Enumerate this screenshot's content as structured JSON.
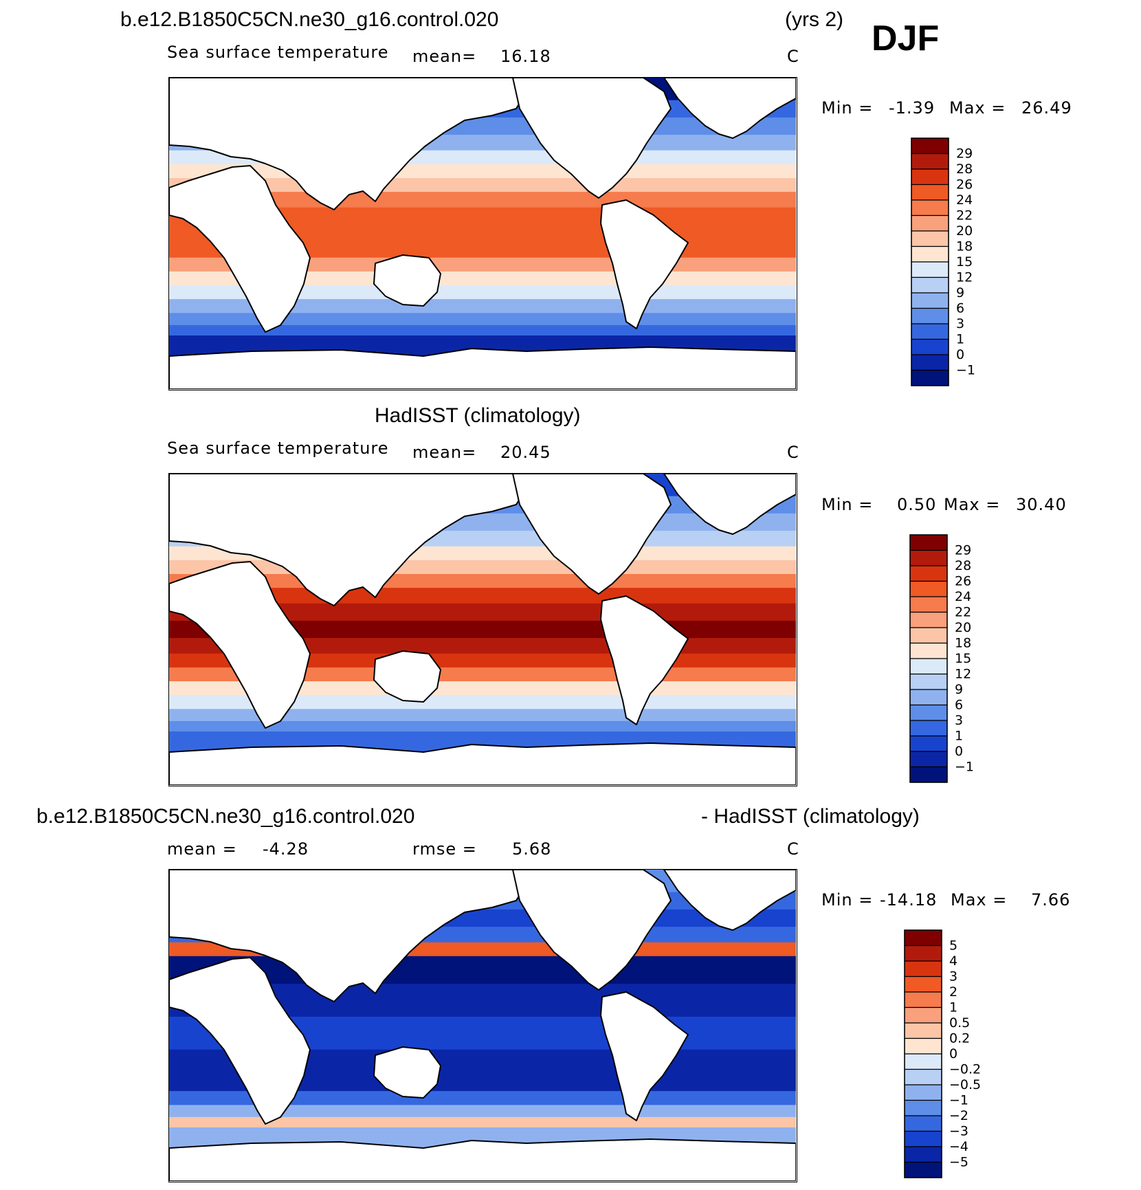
{
  "season_label": "DJF",
  "panels": [
    {
      "id": "model",
      "title_left": "b.e12.B1850C5CN.ne30_g16.control.020",
      "title_right": "(yrs 2)",
      "variable": "Sea surface temperature",
      "stat1_label": "mean=",
      "stat1_value": "16.18",
      "units": "C",
      "min_label": "Min =",
      "min_value": "-1.39",
      "max_label": "Max =",
      "max_value": "26.49"
    },
    {
      "id": "obs",
      "title_center": "HadISST (climatology)",
      "variable": "Sea surface temperature",
      "stat1_label": "mean=",
      "stat1_value": "20.45",
      "units": "C",
      "min_label": "Min =",
      "min_value": "0.50",
      "max_label": "Max =",
      "max_value": "30.40"
    },
    {
      "id": "diff",
      "title_left": "b.e12.B1850C5CN.ne30_g16.control.020",
      "title_right": "- HadISST (climatology)",
      "stat1_label": "mean =",
      "stat1_value": "-4.28",
      "stat2_label": "rmse =",
      "stat2_value": "5.68",
      "units": "C",
      "min_label": "Min =",
      "min_value": "-14.18",
      "max_label": "Max =",
      "max_value": "7.66"
    }
  ],
  "chart_data": [
    {
      "type": "heatmap",
      "title": "b.e12.B1850C5CN.ne30_g16.control.020 (yrs 2) DJF Sea surface temperature",
      "units": "C",
      "mean": 16.18,
      "min": -1.39,
      "max": 26.49,
      "colorbar_levels": [
        "29",
        "28",
        "26",
        "24",
        "22",
        "20",
        "18",
        "15",
        "12",
        "9",
        "6",
        "3",
        "1",
        "0",
        "-1"
      ],
      "colorbar_colors": [
        "#7f0000",
        "#b21b0c",
        "#d93410",
        "#ef5a25",
        "#f67b4d",
        "#f9a07c",
        "#fcc5a8",
        "#fde5d2",
        "#dce9f8",
        "#b7d0f4",
        "#8fb2ef",
        "#5e8ee8",
        "#3568e0",
        "#1743cf",
        "#0a26a6",
        "#00137b"
      ],
      "bands": [
        {
          "lat": 82,
          "value": -1.2
        },
        {
          "lat": 72,
          "value": 1.5
        },
        {
          "lat": 62,
          "value": 4
        },
        {
          "lat": 52,
          "value": 8
        },
        {
          "lat": 44,
          "value": 12
        },
        {
          "lat": 36,
          "value": 16
        },
        {
          "lat": 28,
          "value": 19
        },
        {
          "lat": 20,
          "value": 22
        },
        {
          "lat": 10,
          "value": 24.5
        },
        {
          "lat": 0,
          "value": 25.5
        },
        {
          "lat": -10,
          "value": 24
        },
        {
          "lat": -18,
          "value": 21
        },
        {
          "lat": -26,
          "value": 17
        },
        {
          "lat": -34,
          "value": 12.5
        },
        {
          "lat": -42,
          "value": 8
        },
        {
          "lat": -50,
          "value": 4
        },
        {
          "lat": -56,
          "value": 1.5
        },
        {
          "lat": -62,
          "value": -0.5
        }
      ]
    },
    {
      "type": "heatmap",
      "title": "HadISST (climatology) Sea surface temperature",
      "units": "C",
      "mean": 20.45,
      "min": 0.5,
      "max": 30.4,
      "colorbar_levels": [
        "29",
        "28",
        "26",
        "24",
        "22",
        "20",
        "18",
        "15",
        "12",
        "9",
        "6",
        "3",
        "1",
        "0",
        "-1"
      ],
      "colorbar_colors": [
        "#7f0000",
        "#b21b0c",
        "#d93410",
        "#ef5a25",
        "#f67b4d",
        "#f9a07c",
        "#fcc5a8",
        "#fde5d2",
        "#dce9f8",
        "#b7d0f4",
        "#8fb2ef",
        "#5e8ee8",
        "#3568e0",
        "#1743cf",
        "#0a26a6",
        "#00137b"
      ],
      "bands": [
        {
          "lat": 82,
          "value": 0.5
        },
        {
          "lat": 72,
          "value": 3
        },
        {
          "lat": 62,
          "value": 7
        },
        {
          "lat": 52,
          "value": 11
        },
        {
          "lat": 44,
          "value": 15
        },
        {
          "lat": 36,
          "value": 19
        },
        {
          "lat": 28,
          "value": 23
        },
        {
          "lat": 20,
          "value": 26
        },
        {
          "lat": 10,
          "value": 28
        },
        {
          "lat": 0,
          "value": 29.2
        },
        {
          "lat": -10,
          "value": 28.3
        },
        {
          "lat": -18,
          "value": 26
        },
        {
          "lat": -26,
          "value": 22
        },
        {
          "lat": -34,
          "value": 17
        },
        {
          "lat": -42,
          "value": 12
        },
        {
          "lat": -50,
          "value": 7
        },
        {
          "lat": -56,
          "value": 3
        },
        {
          "lat": -62,
          "value": 1
        }
      ]
    },
    {
      "type": "heatmap",
      "title": "b.e12.B1850C5CN.ne30_g16.control.020 - HadISST (climatology)",
      "units": "C",
      "mean": -4.28,
      "rmse": 5.68,
      "min": -14.18,
      "max": 7.66,
      "colorbar_levels": [
        "5",
        "4",
        "3",
        "2",
        "1",
        "0.5",
        "0.2",
        "0",
        "-0.2",
        "-0.5",
        "-1",
        "-2",
        "-3",
        "-4",
        "-5"
      ],
      "colorbar_colors": [
        "#7f0000",
        "#b21b0c",
        "#d93410",
        "#ef5a25",
        "#f67b4d",
        "#f9a07c",
        "#fcc5a8",
        "#fde5d2",
        "#dce9f8",
        "#b7d0f4",
        "#8fb2ef",
        "#5e8ee8",
        "#3568e0",
        "#1743cf",
        "#0a26a6",
        "#00137b"
      ],
      "bands": [
        {
          "lat": 82,
          "value": -2
        },
        {
          "lat": 72,
          "value": -3
        },
        {
          "lat": 62,
          "value": -4
        },
        {
          "lat": 52,
          "value": -3
        },
        {
          "lat": 44,
          "value": 2
        },
        {
          "lat": 36,
          "value": -6
        },
        {
          "lat": 28,
          "value": -6
        },
        {
          "lat": 20,
          "value": -5
        },
        {
          "lat": 10,
          "value": -5
        },
        {
          "lat": 0,
          "value": -4
        },
        {
          "lat": -10,
          "value": -4
        },
        {
          "lat": -18,
          "value": -5
        },
        {
          "lat": -26,
          "value": -5
        },
        {
          "lat": -34,
          "value": -4.5
        },
        {
          "lat": -42,
          "value": -3
        },
        {
          "lat": -50,
          "value": -1
        },
        {
          "lat": -56,
          "value": 0.3
        },
        {
          "lat": -62,
          "value": -1
        }
      ]
    }
  ]
}
